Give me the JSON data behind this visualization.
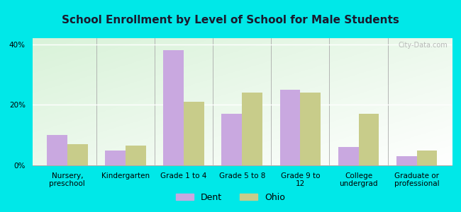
{
  "title": "School Enrollment by Level of School for Male Students",
  "categories": [
    "Nursery,\npreschool",
    "Kindergarten",
    "Grade 1 to 4",
    "Grade 5 to 8",
    "Grade 9 to\n12",
    "College\nundergrad",
    "Graduate or\nprofessional"
  ],
  "dent_values": [
    10,
    5,
    38,
    17,
    25,
    6,
    3
  ],
  "ohio_values": [
    7,
    6.5,
    21,
    24,
    24,
    17,
    5
  ],
  "dent_color": "#c9a8e0",
  "ohio_color": "#c8cc8a",
  "bar_width": 0.35,
  "ylim": [
    0,
    42
  ],
  "yticks": [
    0,
    20,
    40
  ],
  "ytick_labels": [
    "0%",
    "20%",
    "40%"
  ],
  "background_color": "#00e8e8",
  "title_fontsize": 11,
  "tick_fontsize": 7.5,
  "legend_fontsize": 9,
  "watermark": "City-Data.com"
}
